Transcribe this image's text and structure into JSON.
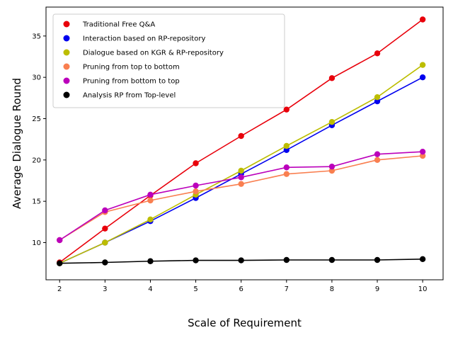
{
  "chart_data": {
    "type": "line",
    "xlabel": "Scale of Requirement",
    "ylabel": "Average Dialogue Round",
    "x": [
      2,
      3,
      4,
      5,
      6,
      7,
      8,
      9,
      10
    ],
    "xlim": [
      1.7,
      10.45
    ],
    "ylim": [
      5.5,
      38.5
    ],
    "xticks": [
      2,
      3,
      4,
      5,
      6,
      7,
      8,
      9,
      10
    ],
    "yticks": [
      10,
      15,
      20,
      25,
      30,
      35
    ],
    "grid": false,
    "legend_position": "top-left",
    "series": [
      {
        "name": "Traditional Free Q&A",
        "color": "#e8000b",
        "values": [
          7.6,
          11.7,
          15.7,
          19.6,
          22.9,
          26.1,
          29.9,
          32.9,
          37.0
        ]
      },
      {
        "name": "Interaction based on RP-repository",
        "color": "#0000ee",
        "values": [
          7.5,
          10.0,
          12.6,
          15.4,
          18.3,
          21.2,
          24.2,
          27.1,
          30.0
        ]
      },
      {
        "name": "Dialogue based on KGR & RP-repository",
        "color": "#bcbd00",
        "values": [
          7.5,
          10.0,
          12.8,
          15.8,
          18.7,
          21.7,
          24.6,
          27.6,
          31.5
        ]
      },
      {
        "name": "Pruning from top to bottom",
        "color": "#f97f50",
        "values": [
          10.3,
          13.7,
          15.1,
          16.2,
          17.1,
          18.3,
          18.7,
          20.0,
          20.5
        ]
      },
      {
        "name": "Pruning from bottom to top",
        "color": "#bb00bb",
        "values": [
          10.3,
          13.9,
          15.8,
          16.9,
          17.9,
          19.1,
          19.2,
          20.7,
          21.0
        ]
      },
      {
        "name": "Analysis RP from Top-level",
        "color": "#000000",
        "values": [
          7.5,
          7.6,
          7.75,
          7.85,
          7.85,
          7.9,
          7.9,
          7.9,
          8.0
        ]
      }
    ]
  }
}
